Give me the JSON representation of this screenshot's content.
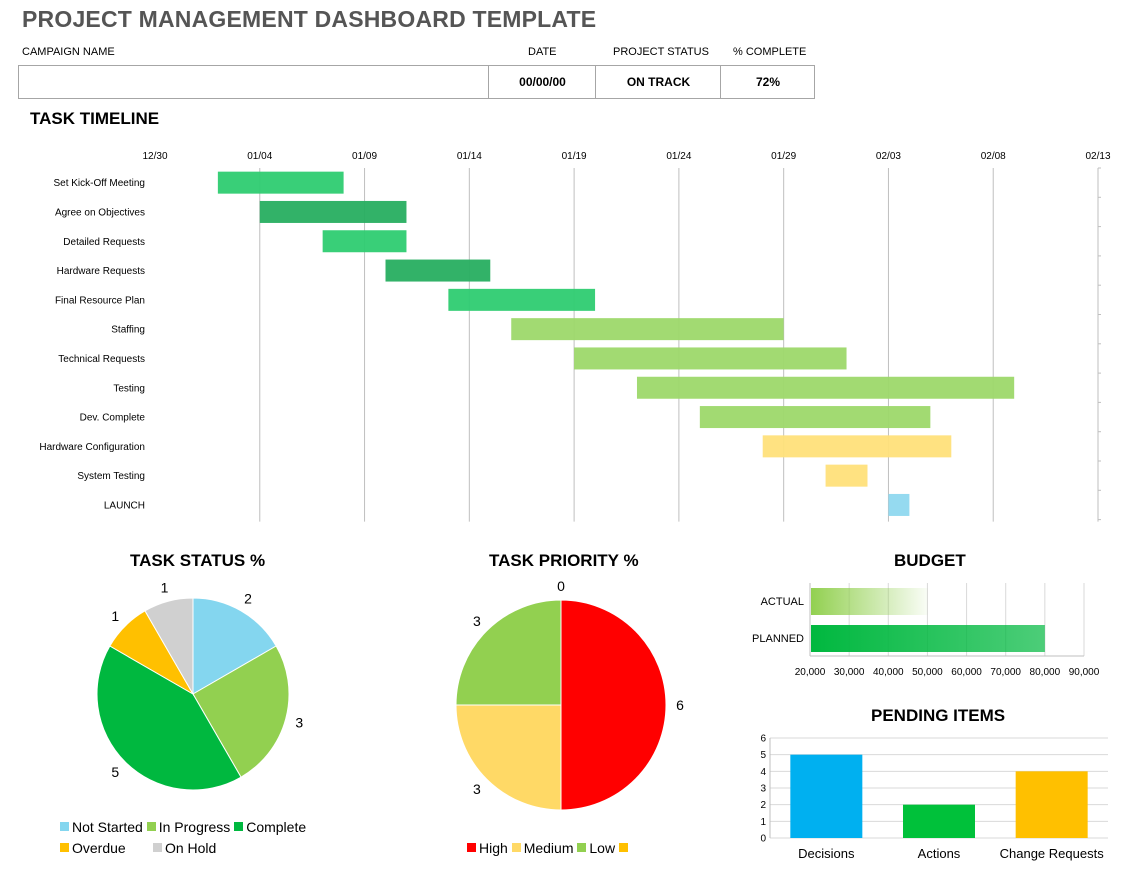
{
  "header": {
    "title": "PROJECT MANAGEMENT DASHBOARD TEMPLATE",
    "campaign_label": "CAMPAIGN NAME",
    "date_label": "DATE",
    "status_label": "PROJECT  STATUS",
    "complete_label": "% COMPLETE",
    "campaign_value": "",
    "date_value": "00/00/00",
    "status_value": "ON TRACK",
    "complete_value": "72%"
  },
  "titles": {
    "timeline": "TASK TIMELINE",
    "status": "TASK STATUS %",
    "priority": "TASK PRIORITY %",
    "budget": "BUDGET",
    "pending": "PENDING ITEMS"
  },
  "chart_data": [
    {
      "type": "bar",
      "orientation": "horizontal-gantt",
      "title": "TASK TIMELINE",
      "x_ticks": [
        "12/30",
        "01/04",
        "01/09",
        "01/14",
        "01/19",
        "01/24",
        "01/29",
        "02/03",
        "02/08",
        "02/13"
      ],
      "xlim": [
        0,
        45
      ],
      "tasks": [
        {
          "name": "Set Kick-Off Meeting",
          "start": 3,
          "end": 9,
          "color": "#2ecc71"
        },
        {
          "name": "Agree on Objectives",
          "start": 5,
          "end": 12,
          "color": "#27ae60"
        },
        {
          "name": "Detailed Requests",
          "start": 8,
          "end": 12,
          "color": "#2ecc71"
        },
        {
          "name": "Hardware Requests",
          "start": 11,
          "end": 16,
          "color": "#27ae60"
        },
        {
          "name": "Final Resource Plan",
          "start": 14,
          "end": 21,
          "color": "#2ecc71"
        },
        {
          "name": "Staffing",
          "start": 17,
          "end": 30,
          "color": "#9dd86a"
        },
        {
          "name": "Technical Requests",
          "start": 20,
          "end": 33,
          "color": "#9dd86a"
        },
        {
          "name": "Testing",
          "start": 23,
          "end": 41,
          "color": "#9dd86a"
        },
        {
          "name": "Dev. Complete",
          "start": 26,
          "end": 37,
          "color": "#9dd86a"
        },
        {
          "name": "Hardware Configuration",
          "start": 29,
          "end": 38,
          "color": "#ffe07a"
        },
        {
          "name": "System Testing",
          "start": 32,
          "end": 34,
          "color": "#ffe07a"
        },
        {
          "name": "LAUNCH",
          "start": 35,
          "end": 36,
          "color": "#8fd8ef"
        }
      ]
    },
    {
      "type": "pie",
      "title": "TASK STATUS %",
      "slices": [
        {
          "name": "Not Started",
          "value": 2,
          "color": "#84d6ef"
        },
        {
          "name": "In Progress",
          "value": 3,
          "color": "#92d050"
        },
        {
          "name": "Complete",
          "value": 5,
          "color": "#00b83f"
        },
        {
          "name": "Overdue",
          "value": 1,
          "color": "#ffc000"
        },
        {
          "name": "On Hold",
          "value": 1,
          "color": "#d0d0d0"
        }
      ]
    },
    {
      "type": "pie",
      "title": "TASK PRIORITY %",
      "slices": [
        {
          "name": "High",
          "value": 6,
          "color": "#ff0000"
        },
        {
          "name": "Medium",
          "value": 3,
          "color": "#ffd966"
        },
        {
          "name": "Low",
          "value": 3,
          "color": "#92d050"
        },
        {
          "name": "",
          "value": 0,
          "color": "#ffc000"
        }
      ]
    },
    {
      "type": "bar",
      "orientation": "horizontal",
      "title": "BUDGET",
      "categories": [
        "ACTUAL",
        "PLANNED"
      ],
      "values": [
        50000,
        80000
      ],
      "colors": [
        "#92d050",
        "#00b83f"
      ],
      "x_ticks": [
        "20,000",
        "30,000",
        "40,000",
        "50,000",
        "60,000",
        "70,000",
        "80,000",
        "90,000"
      ],
      "xlim": [
        20000,
        90000
      ]
    },
    {
      "type": "bar",
      "title": "PENDING ITEMS",
      "categories": [
        "Decisions",
        "Actions",
        "Change Requests"
      ],
      "values": [
        5,
        2,
        4
      ],
      "colors": [
        "#00b0f0",
        "#00c13a",
        "#ffc000"
      ],
      "ylim": [
        0,
        6
      ],
      "y_ticks": [
        "0",
        "1",
        "2",
        "3",
        "4",
        "5",
        "6"
      ]
    }
  ]
}
